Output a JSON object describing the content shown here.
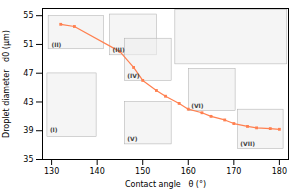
{
  "chart_data": {
    "type": "line",
    "x": [
      132,
      135,
      145,
      148,
      150,
      153,
      155,
      158,
      160,
      163,
      165,
      168,
      170,
      173,
      175,
      178,
      180
    ],
    "values": [
      53.8,
      53.5,
      50.0,
      47.8,
      46.0,
      44.6,
      43.8,
      42.8,
      42.0,
      41.5,
      41.0,
      40.5,
      40.0,
      39.6,
      39.4,
      39.3,
      39.2
    ],
    "color": "#FF8050",
    "marker": "square",
    "xlabel": "Contact angle   θ (°)",
    "ylabel": "Droplet diameter   d0 (μm)",
    "xlim": [
      128,
      182
    ],
    "ylim": [
      35,
      56
    ],
    "xticks": [
      130,
      140,
      150,
      160,
      170,
      180
    ],
    "yticks": [
      35,
      39,
      43,
      47,
      51,
      55
    ],
    "annotations": [
      {
        "text": "(I)"
      },
      {
        "text": "(II)"
      },
      {
        "text": "(III)"
      },
      {
        "text": "(IV)"
      },
      {
        "text": "(V)"
      },
      {
        "text": "(VI)"
      },
      {
        "text": "(VII)"
      }
    ]
  }
}
